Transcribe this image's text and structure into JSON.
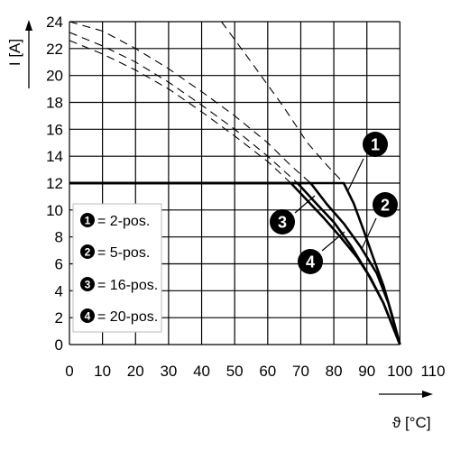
{
  "chart_data": {
    "type": "line",
    "xlabel": "ϑ [°C]",
    "ylabel": "I [A]",
    "xlim": [
      0,
      110
    ],
    "ylim": [
      0,
      24
    ],
    "xticks": [
      "0",
      "10",
      "20",
      "30",
      "40",
      "50",
      "60",
      "70",
      "80",
      "90",
      "100",
      "110"
    ],
    "yticks": [
      "0",
      "2",
      "4",
      "6",
      "8",
      "10",
      "12",
      "14",
      "16",
      "18",
      "20",
      "22",
      "24"
    ],
    "grid": true,
    "legend_position": "left",
    "legend": [
      {
        "key": "1",
        "label": "= 2-pos."
      },
      {
        "key": "2",
        "label": "= 5-pos."
      },
      {
        "key": "3",
        "label": "= 16-pos."
      },
      {
        "key": "4",
        "label": "= 20-pos."
      }
    ],
    "series": [
      {
        "key": "1",
        "color": "#000000",
        "rated_current": 12,
        "solid": [
          [
            0,
            12
          ],
          [
            83,
            12
          ],
          [
            86,
            10.5
          ],
          [
            89,
            8.5
          ],
          [
            92,
            6.4
          ],
          [
            95,
            4.4
          ],
          [
            97.5,
            2.3
          ],
          [
            100,
            0
          ]
        ],
        "dashed": [
          [
            46,
            24
          ],
          [
            55,
            21
          ],
          [
            65,
            17.6
          ],
          [
            72,
            15
          ],
          [
            78,
            13.3
          ],
          [
            83,
            12
          ]
        ]
      },
      {
        "key": "2",
        "color": "#000000",
        "rated_current": 12,
        "solid": [
          [
            0,
            12
          ],
          [
            73,
            12
          ],
          [
            78,
            10.4
          ],
          [
            83,
            9
          ],
          [
            88,
            7.3
          ],
          [
            93,
            5.3
          ],
          [
            96.5,
            3.1
          ],
          [
            100,
            0
          ]
        ],
        "dashed": [
          [
            0,
            24
          ],
          [
            10,
            23.3
          ],
          [
            20,
            22
          ],
          [
            30,
            20.5
          ],
          [
            40,
            18.8
          ],
          [
            50,
            17
          ],
          [
            60,
            15
          ],
          [
            67,
            13.3
          ],
          [
            73,
            12
          ]
        ]
      },
      {
        "key": "3",
        "color": "#000000",
        "rated_current": 12,
        "solid": [
          [
            0,
            12
          ],
          [
            69,
            12
          ],
          [
            75,
            10.4
          ],
          [
            80,
            9.1
          ],
          [
            85,
            7.4
          ],
          [
            90,
            5.4
          ],
          [
            95,
            3.1
          ],
          [
            100,
            0
          ]
        ],
        "dashed": [
          [
            0,
            23.2
          ],
          [
            10,
            22.2
          ],
          [
            20,
            21
          ],
          [
            30,
            19.5
          ],
          [
            40,
            17.8
          ],
          [
            50,
            16
          ],
          [
            60,
            14
          ],
          [
            69,
            12
          ]
        ]
      },
      {
        "key": "4",
        "color": "#000000",
        "rated_current": 12,
        "solid": [
          [
            0,
            12
          ],
          [
            67,
            12
          ],
          [
            72,
            10.7
          ],
          [
            77,
            9.4
          ],
          [
            82,
            8
          ],
          [
            87,
            6.5
          ],
          [
            91,
            5
          ],
          [
            95,
            3.1
          ],
          [
            100,
            0
          ]
        ],
        "dashed": [
          [
            0,
            22.6
          ],
          [
            10,
            21.6
          ],
          [
            20,
            20.4
          ],
          [
            30,
            19
          ],
          [
            40,
            17.3
          ],
          [
            50,
            15.5
          ],
          [
            60,
            13.6
          ],
          [
            67,
            12
          ]
        ]
      }
    ],
    "callouts": [
      "1",
      "2",
      "3",
      "4"
    ]
  }
}
